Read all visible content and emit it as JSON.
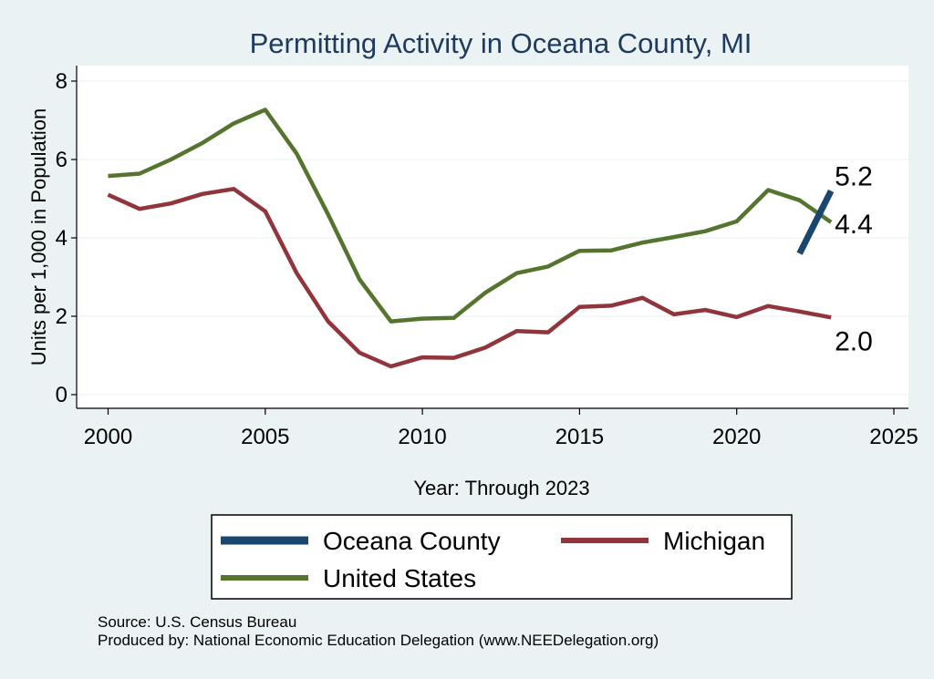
{
  "chart_data": {
    "type": "line",
    "title": "Permitting Activity in Oceana County, MI",
    "xlabel": "Year: Through 2023",
    "ylabel": "Units per 1,000 in Population",
    "xlim": [
      2000,
      2025
    ],
    "ylim": [
      0,
      8
    ],
    "xticks": [
      2000,
      2005,
      2010,
      2015,
      2020,
      2025
    ],
    "yticks": [
      0,
      2,
      4,
      6,
      8
    ],
    "grid": "horizontal",
    "legend_placement": "bottom",
    "series": [
      {
        "name": "Oceana County",
        "color": "#1a476f",
        "x": [
          2022,
          2023
        ],
        "y": [
          3.6,
          5.2
        ],
        "end_label": "5.2"
      },
      {
        "name": "Michigan",
        "color": "#90353b",
        "x": [
          2000,
          2001,
          2002,
          2003,
          2004,
          2005,
          2006,
          2007,
          2008,
          2009,
          2010,
          2011,
          2012,
          2013,
          2014,
          2015,
          2016,
          2017,
          2018,
          2019,
          2020,
          2021,
          2022,
          2023
        ],
        "y": [
          5.1,
          4.74,
          4.88,
          5.12,
          5.25,
          4.68,
          3.1,
          1.87,
          1.07,
          0.72,
          0.95,
          0.94,
          1.2,
          1.62,
          1.59,
          2.24,
          2.27,
          2.47,
          2.05,
          2.16,
          1.98,
          2.26,
          2.12,
          1.97
        ],
        "end_label": "2.0"
      },
      {
        "name": "United States",
        "color": "#55752f",
        "x": [
          2000,
          2001,
          2002,
          2003,
          2004,
          2005,
          2006,
          2007,
          2008,
          2009,
          2010,
          2011,
          2012,
          2013,
          2014,
          2015,
          2016,
          2017,
          2018,
          2019,
          2020,
          2021,
          2022,
          2023
        ],
        "y": [
          5.58,
          5.64,
          6.0,
          6.42,
          6.92,
          7.27,
          6.15,
          4.6,
          2.94,
          1.87,
          1.94,
          1.96,
          2.6,
          3.1,
          3.27,
          3.67,
          3.68,
          3.88,
          4.02,
          4.17,
          4.42,
          5.22,
          4.96,
          4.4
        ],
        "end_label": "4.4"
      }
    ],
    "legend_order": [
      "Oceana County",
      "Michigan",
      "United States"
    ],
    "notes": [
      "Source: U.S. Census Bureau",
      "Produced by: National Economic Education Delegation (www.NEEDelegation.org)"
    ]
  }
}
